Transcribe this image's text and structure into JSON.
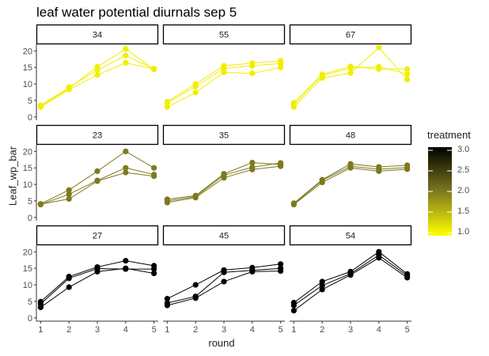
{
  "chart_data": {
    "type": "line",
    "title": "leaf water potential diurnals sep 5",
    "xlabel": "round",
    "ylabel": "Leaf_wp_bar",
    "x_ticks": [
      "1",
      "2",
      "3",
      "4",
      "5"
    ],
    "y_ticks": [
      "0",
      "5",
      "10",
      "15",
      "20"
    ],
    "ylim": [
      -1,
      22
    ],
    "xlim": [
      0.85,
      5.15
    ],
    "grid": false,
    "legend": {
      "title": "treatment",
      "placement": "right",
      "type": "colorbar",
      "range": [
        1.0,
        3.0
      ],
      "ticks": [
        "1.0",
        "1.5",
        "2.0",
        "2.5",
        "3.0"
      ],
      "low_color": "#ffff00",
      "high_color": "#000000"
    },
    "panels": [
      {
        "label": "34",
        "treatment": 1,
        "color": "#f2ee00",
        "series": [
          [
            3.0,
            8.3,
            12.7,
            16.4,
            14.5
          ],
          [
            3.5,
            9.0,
            14.2,
            18.6,
            14.6
          ],
          [
            3.2,
            8.6,
            15.2,
            20.6,
            14.4
          ]
        ]
      },
      {
        "label": "55",
        "treatment": 1,
        "color": "#f2ee00",
        "series": [
          [
            3.0,
            7.4,
            13.5,
            13.2,
            15.0
          ],
          [
            4.3,
            9.2,
            14.7,
            15.5,
            16.2
          ],
          [
            4.6,
            10.0,
            15.5,
            16.3,
            17.0
          ]
        ]
      },
      {
        "label": "67",
        "treatment": 1,
        "color": "#f2ee00",
        "series": [
          [
            3.0,
            11.8,
            13.3,
            21.0,
            11.3
          ],
          [
            3.8,
            12.5,
            14.8,
            15.2,
            13.0
          ],
          [
            4.3,
            12.9,
            15.3,
            14.5,
            14.5
          ]
        ]
      },
      {
        "label": "23",
        "treatment": 2,
        "color": "#7d7a1e",
        "series": [
          [
            4.0,
            5.6,
            11.0,
            13.6,
            12.5
          ],
          [
            3.9,
            7.0,
            11.2,
            15.0,
            13.0
          ],
          [
            4.1,
            8.3,
            14.0,
            20.0,
            15.0
          ]
        ]
      },
      {
        "label": "35",
        "treatment": 2,
        "color": "#7d7a1e",
        "series": [
          [
            4.5,
            6.0,
            12.0,
            14.5,
            15.5
          ],
          [
            5.0,
            6.3,
            12.8,
            15.2,
            16.5
          ],
          [
            5.5,
            6.6,
            13.2,
            16.6,
            16.0
          ]
        ]
      },
      {
        "label": "48",
        "treatment": 2,
        "color": "#7d7a1e",
        "series": [
          [
            3.9,
            10.6,
            15.0,
            14.0,
            14.6
          ],
          [
            4.1,
            11.2,
            15.5,
            14.6,
            15.1
          ],
          [
            4.3,
            11.4,
            16.2,
            15.3,
            15.8
          ]
        ]
      },
      {
        "label": "27",
        "treatment": 3,
        "color": "#000000",
        "series": [
          [
            3.2,
            9.3,
            14.0,
            15.0,
            13.5
          ],
          [
            4.2,
            12.0,
            14.9,
            14.8,
            14.8
          ],
          [
            4.9,
            12.5,
            15.4,
            17.3,
            15.8
          ]
        ]
      },
      {
        "label": "45",
        "treatment": 3,
        "color": "#000000",
        "series": [
          [
            3.8,
            6.0,
            11.0,
            14.0,
            14.2
          ],
          [
            4.5,
            6.5,
            13.8,
            14.4,
            15.0
          ],
          [
            5.8,
            10.0,
            14.5,
            15.2,
            16.3
          ]
        ]
      },
      {
        "label": "54",
        "treatment": 3,
        "color": "#000000",
        "series": [
          [
            2.2,
            8.6,
            13.0,
            18.2,
            12.2
          ],
          [
            3.8,
            9.8,
            13.4,
            19.0,
            12.8
          ],
          [
            4.6,
            11.0,
            14.0,
            20.0,
            13.3
          ]
        ]
      }
    ]
  }
}
